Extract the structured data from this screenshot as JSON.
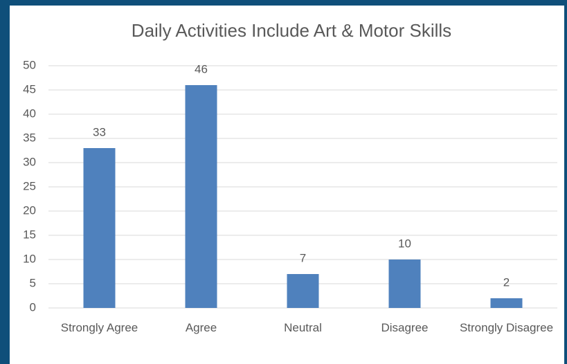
{
  "chart_data": {
    "type": "bar",
    "title": "Daily Activities Include Art & Motor Skills",
    "categories": [
      "Strongly Agree",
      "Agree",
      "Neutral",
      "Disagree",
      "Strongly Disagree"
    ],
    "values": [
      33,
      46,
      7,
      10,
      2
    ],
    "color": "#4f81bd",
    "ylim": [
      0,
      50
    ],
    "yticks": [
      0,
      5,
      10,
      15,
      20,
      25,
      30,
      35,
      40,
      45,
      50
    ],
    "grid": true
  }
}
